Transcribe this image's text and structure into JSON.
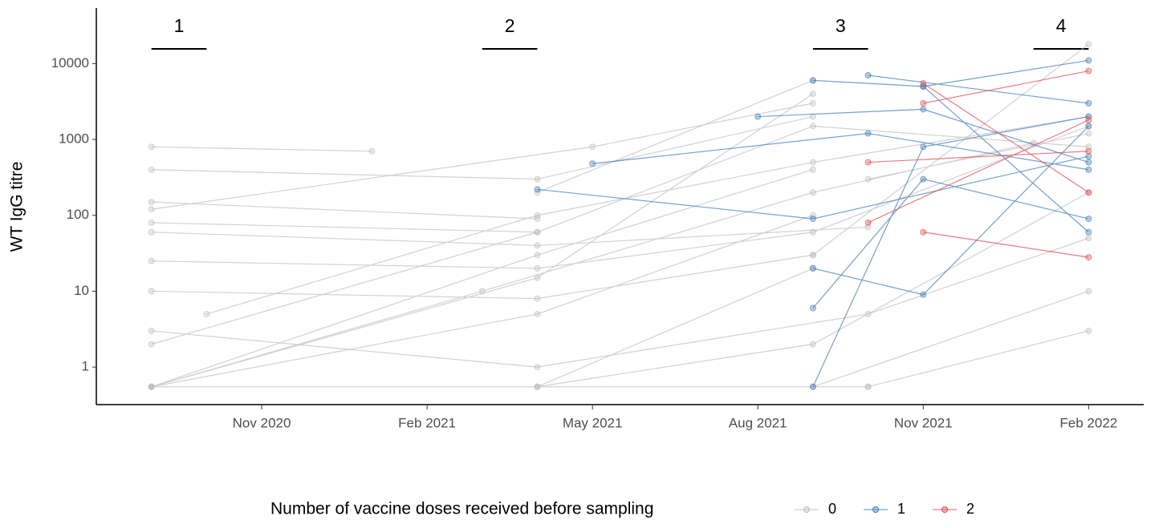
{
  "chart_data": {
    "type": "line",
    "y_label": "WT IgG titre",
    "log_y": true,
    "ylim": [
      0.32,
      54000
    ],
    "yticks": [
      1,
      10,
      100,
      1000,
      10000
    ],
    "xlim": [
      "2020-08",
      "2022-03"
    ],
    "xticks": [
      {
        "value": "2020-11",
        "label": "Nov 2020"
      },
      {
        "value": "2021-02",
        "label": "Feb 2021"
      },
      {
        "value": "2021-05",
        "label": "May 2021"
      },
      {
        "value": "2021-08",
        "label": "Aug 2021"
      },
      {
        "value": "2021-11",
        "label": "Nov 2021"
      },
      {
        "value": "2022-02",
        "label": "Feb 2022"
      }
    ],
    "annotations": [
      {
        "label": "1",
        "x": [
          "2020-09",
          "2020-10"
        ]
      },
      {
        "label": "2",
        "x": [
          "2021-03",
          "2021-04"
        ]
      },
      {
        "label": "3",
        "x": [
          "2021-09",
          "2021-10"
        ]
      },
      {
        "label": "4",
        "x": [
          "2022-01",
          "2022-02"
        ]
      }
    ],
    "legend_title": "Number of vaccine doses received before sampling",
    "legend": "bottom",
    "series": [
      {
        "name": "0",
        "color": "#bdbdbd",
        "x": [
          "2020-09",
          "2021-04",
          "2021-09",
          null,
          "2020-09",
          "2021-04",
          null,
          "2020-09",
          "2021-04",
          "2021-09",
          null,
          "2020-09",
          "2021-04",
          "2021-09",
          null,
          "2020-09",
          "2021-04",
          "2021-09",
          "2022-02",
          null,
          "2020-09",
          "2021-04",
          null,
          "2020-09",
          "2021-04",
          "2021-09",
          null,
          "2020-09",
          "2021-01",
          null,
          "2020-09",
          "2021-04",
          "2021-09",
          null,
          "2020-09",
          "2021-04",
          "2021-09",
          "2022-02",
          null,
          "2020-09",
          "2021-04",
          "2021-09",
          null,
          "2020-09",
          "2021-04",
          "2021-10",
          null,
          "2020-10",
          "2021-04",
          "2021-09",
          "2022-02",
          null,
          "2021-04",
          "2021-09",
          "2022-02",
          null,
          "2021-04",
          "2021-10",
          null,
          "2021-04",
          "2021-09",
          null,
          "2021-09",
          "2022-02",
          null,
          "2021-10",
          "2022-02",
          null,
          "2021-09",
          "2022-02",
          null,
          "2020-09",
          "2021-05",
          "2021-09",
          null,
          "2020-09",
          "2021-04",
          "2021-10",
          "2022-02",
          null,
          "2021-10",
          "2022-02",
          null,
          "2020-09",
          "2021-03",
          "2021-09",
          "2022-01"
        ],
        "values": [
          0.55,
          30,
          400,
          null,
          80,
          60,
          null,
          400,
          300,
          2000,
          null,
          0.55,
          5,
          100,
          null,
          25,
          20,
          60,
          1500,
          null,
          150,
          90,
          null,
          0.55,
          0.55,
          20,
          null,
          800,
          700,
          null,
          10,
          8,
          30,
          null,
          2,
          60,
          1500,
          800,
          null,
          0.55,
          15,
          4000,
          null,
          60,
          40,
          70,
          null,
          5,
          100,
          500,
          2000,
          null,
          0.55,
          2,
          200,
          null,
          0.55,
          0.55,
          null,
          200,
          6000,
          null,
          0.55,
          10,
          null,
          0.55,
          3,
          null,
          30,
          18000,
          null,
          120,
          800,
          3000,
          null,
          3,
          1,
          5,
          50,
          null,
          300,
          1200,
          null,
          0.55,
          10,
          200,
          900
        ]
      },
      {
        "name": "1",
        "color": "#3a78b8",
        "x": [
          "2021-05",
          "2021-10",
          "2022-02",
          null,
          "2021-04",
          "2021-09",
          "2022-02",
          null,
          "2021-09",
          "2021-11",
          "2022-02",
          null,
          "2021-09",
          "2021-11",
          "2022-02",
          null,
          "2021-09",
          "2021-11",
          "2022-02",
          null,
          "2021-08",
          "2021-11",
          "2022-02",
          null,
          "2021-10",
          "2022-02",
          null,
          "2021-09",
          "2021-11",
          "2022-02",
          null,
          "2021-11",
          "2022-02"
        ],
        "values": [
          480,
          1200,
          400,
          null,
          220,
          90,
          600,
          null,
          6000,
          5000,
          11000,
          null,
          0.55,
          800,
          2000,
          null,
          6,
          300,
          90,
          null,
          2000,
          2500,
          500,
          null,
          7000,
          3000,
          null,
          20,
          9,
          1500,
          null,
          5000,
          60
        ]
      },
      {
        "name": "2",
        "color": "#e0454a",
        "x": [
          "2021-11",
          "2022-02",
          null,
          "2021-10",
          "2022-02",
          null,
          "2021-11",
          "2022-02",
          null,
          "2021-11",
          "2022-02",
          null,
          "2021-10",
          "2022-02"
        ],
        "values": [
          5500,
          200,
          null,
          80,
          1800,
          null,
          60,
          28,
          null,
          3000,
          8000,
          null,
          500,
          700
        ]
      }
    ]
  }
}
